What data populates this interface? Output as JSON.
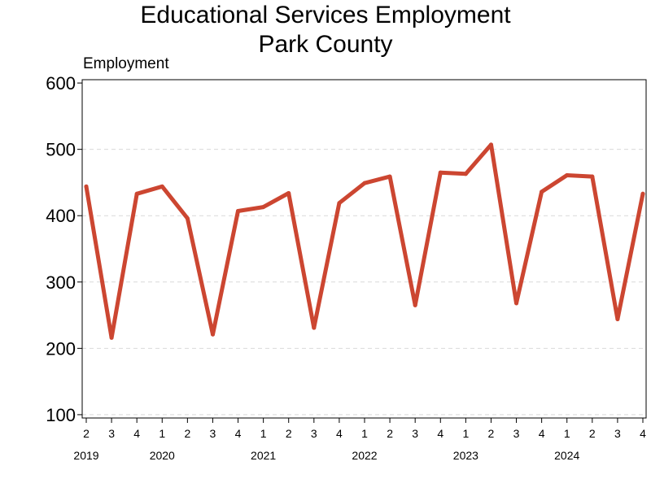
{
  "chart_data": {
    "type": "line",
    "title": [
      "Educational Services Employment",
      "Park County"
    ],
    "ylabel": "Employment",
    "xlabel": "",
    "ylim": [
      95,
      605
    ],
    "yticks": [
      100,
      200,
      300,
      400,
      500,
      600
    ],
    "quarter_tick_labels": [
      "2",
      "3",
      "4",
      "1",
      "2",
      "3",
      "4",
      "1",
      "2",
      "3",
      "4",
      "1",
      "2",
      "3",
      "4",
      "1",
      "2",
      "3",
      "4",
      "1",
      "2",
      "3",
      "4"
    ],
    "year_labels": [
      {
        "label": "2019",
        "quarter_index": 0
      },
      {
        "label": "2020",
        "quarter_index": 3
      },
      {
        "label": "2021",
        "quarter_index": 7
      },
      {
        "label": "2022",
        "quarter_index": 11
      },
      {
        "label": "2023",
        "quarter_index": 15
      },
      {
        "label": "2024",
        "quarter_index": 19
      }
    ],
    "x": [
      "2019 Q2",
      "2019 Q3",
      "2019 Q4",
      "2020 Q1",
      "2020 Q2",
      "2020 Q3",
      "2020 Q4",
      "2021 Q1",
      "2021 Q2",
      "2021 Q3",
      "2021 Q4",
      "2022 Q1",
      "2022 Q2",
      "2022 Q3",
      "2022 Q4",
      "2023 Q1",
      "2023 Q2",
      "2023 Q3",
      "2023 Q4",
      "2024 Q1",
      "2024 Q2",
      "2024 Q3",
      "2024 Q4"
    ],
    "series": [
      {
        "values": [
          444,
          216,
          433,
          444,
          396,
          221,
          407,
          413,
          434,
          231,
          419,
          449,
          459,
          265,
          465,
          463,
          507,
          268,
          436,
          461,
          459,
          244,
          433
        ]
      }
    ],
    "grid": "horizontal dashed",
    "line_color": "#cc4631"
  }
}
